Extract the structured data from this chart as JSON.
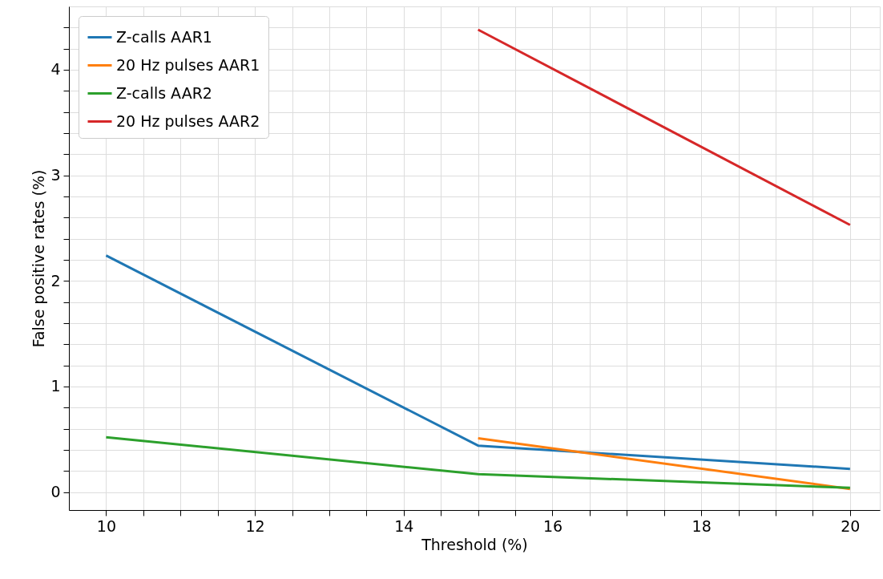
{
  "chart_data": {
    "type": "line",
    "xlabel": "Threshold (%)",
    "ylabel": "False positive rates (%)",
    "x": [
      10,
      15,
      20
    ],
    "series": [
      {
        "name": "Z-calls AAR1",
        "color": "#1f77b4",
        "values": [
          2.24,
          0.44,
          0.22
        ]
      },
      {
        "name": "20 Hz pulses AAR1",
        "color": "#ff7f0e",
        "values": [
          null,
          0.51,
          0.03
        ]
      },
      {
        "name": "Z-calls AAR2",
        "color": "#2ca02c",
        "values": [
          0.52,
          0.17,
          0.04
        ]
      },
      {
        "name": "20 Hz pulses AAR2",
        "color": "#d62728",
        "values": [
          null,
          4.38,
          2.53
        ]
      }
    ],
    "xlim": [
      9.5,
      20.4
    ],
    "ylim": [
      -0.17,
      4.6
    ],
    "xticks": [
      10,
      {
        "value": 10.5,
        "label": null
      },
      {
        "value": 11,
        "label": null
      },
      {
        "value": 11.5,
        "label": null
      },
      12,
      {
        "value": 12.5,
        "label": null
      },
      {
        "value": 13,
        "label": null
      },
      {
        "value": 13.5,
        "label": null
      },
      14,
      {
        "value": 14.5,
        "label": null
      },
      {
        "value": 15,
        "label": null
      },
      {
        "value": 15.5,
        "label": null
      },
      16,
      {
        "value": 16.5,
        "label": null
      },
      {
        "value": 17,
        "label": null
      },
      {
        "value": 17.5,
        "label": null
      },
      18,
      {
        "value": 18.5,
        "label": null
      },
      {
        "value": 19,
        "label": null
      },
      {
        "value": 19.5,
        "label": null
      },
      20
    ],
    "yticks": [
      0,
      {
        "value": 0.2,
        "label": null
      },
      {
        "value": 0.4,
        "label": null
      },
      {
        "value": 0.6,
        "label": null
      },
      {
        "value": 0.8,
        "label": null
      },
      1,
      {
        "value": 1.2,
        "label": null
      },
      {
        "value": 1.4,
        "label": null
      },
      {
        "value": 1.6,
        "label": null
      },
      {
        "value": 1.8,
        "label": null
      },
      2,
      {
        "value": 2.2,
        "label": null
      },
      {
        "value": 2.4,
        "label": null
      },
      {
        "value": 2.6,
        "label": null
      },
      {
        "value": 2.8,
        "label": null
      },
      3,
      {
        "value": 3.2,
        "label": null
      },
      {
        "value": 3.4,
        "label": null
      },
      {
        "value": 3.6,
        "label": null
      },
      {
        "value": 3.8,
        "label": null
      },
      4,
      {
        "value": 4.2,
        "label": null
      },
      {
        "value": 4.4,
        "label": null
      }
    ],
    "grid": true,
    "legend": "top left",
    "marker": "none",
    "line_style": "solid"
  }
}
